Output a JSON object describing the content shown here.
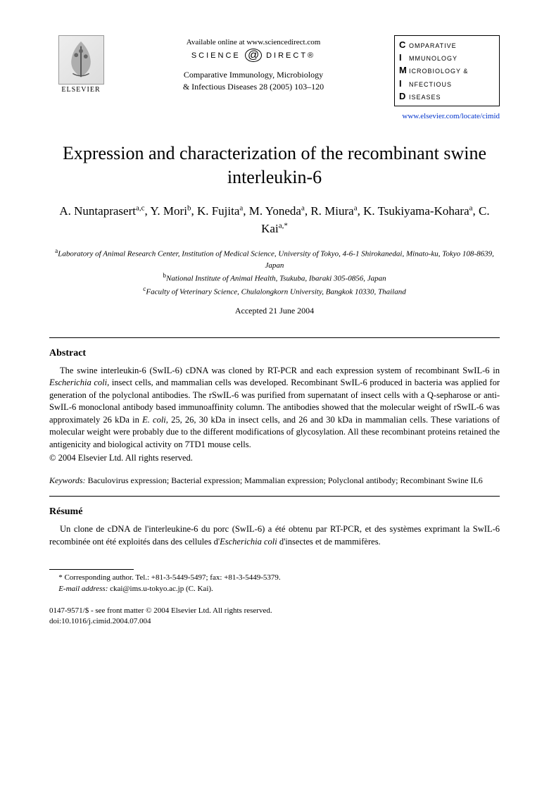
{
  "header": {
    "publisher_name": "ELSEVIER",
    "available_online": "Available online at www.sciencedirect.com",
    "sciencedirect_left": "SCIENCE",
    "sciencedirect_right": "DIRECT®",
    "journal_ref_line1": "Comparative Immunology, Microbiology",
    "journal_ref_line2": "& Infectious Diseases 28 (2005) 103–120",
    "journal_box": {
      "l1_cap": "C",
      "l1_rest": "OMPARATIVE",
      "l2_cap": "I",
      "l2_rest": "MMUNOLOGY",
      "l3_cap": "M",
      "l3_rest": "ICROBIOLOGY &",
      "l4_cap": "I",
      "l4_rest": "NFECTIOUS",
      "l5_cap": "D",
      "l5_rest": "ISEASES"
    },
    "journal_url": "www.elsevier.com/locate/cimid"
  },
  "title": "Expression and characterization of the recombinant swine interleukin-6",
  "authors_html": "A. Nuntaprasert<sup>a,c</sup>, Y. Mori<sup>b</sup>, K. Fujita<sup>a</sup>, M. Yoneda<sup>a</sup>, R. Miura<sup>a</sup>, K. Tsukiyama-Kohara<sup>a</sup>, C. Kai<sup>a,*</sup>",
  "affiliations": {
    "a": "Laboratory of Animal Research Center, Institution of Medical Science, University of Tokyo, 4-6-1 Shirokanedai, Minato-ku, Tokyo 108-8639, Japan",
    "b": "National Institute of Animal Health, Tsukuba, Ibaraki 305-0856, Japan",
    "c": "Faculty of Veterinary Science, Chulalongkorn University, Bangkok 10330, Thailand"
  },
  "accepted": "Accepted 21 June 2004",
  "abstract": {
    "heading": "Abstract",
    "body": "The swine interleukin-6 (SwIL-6) cDNA was cloned by RT-PCR and each expression system of recombinant SwIL-6 in <em>Escherichia coli</em>, insect cells, and mammalian cells was developed. Recombinant SwIL-6 produced in bacteria was applied for generation of the polyclonal antibodies. The rSwIL-6 was purified from supernatant of insect cells with a Q-sepharose or anti-SwIL-6 monoclonal antibody based immunoaffinity column. The antibodies showed that the molecular weight of rSwIL-6 was approximately 26 kDa in <em>E. coli</em>, 25, 26, 30 kDa in insect cells, and 26 and 30 kDa in mammalian cells. These variations of molecular weight were probably due to the different modifications of glycosylation. All these recombinant proteins retained the antigenicity and biological activity on 7TD1 mouse cells.",
    "copyright": "© 2004 Elsevier Ltd. All rights reserved."
  },
  "keywords": {
    "label": "Keywords:",
    "text": " Baculovirus expression; Bacterial expression; Mammalian expression; Polyclonal antibody; Recombinant Swine IL6"
  },
  "resume": {
    "heading": "Résumé",
    "body": "Un clone de cDNA de l'interleukine-6 du porc (SwIL-6) a été obtenu par RT-PCR, et des systèmes exprimant la SwIL-6 recombinée ont été exploités dans des cellules d'<em>Escherichia coli</em> d'insectes et de mammifères."
  },
  "footnote": {
    "corresponding": "* Corresponding author. Tel.: +81-3-5449-5497; fax: +81-3-5449-5379.",
    "email_label": "E-mail address:",
    "email": " ckai@ims.u-tokyo.ac.jp (C. Kai)."
  },
  "bottom": {
    "line1": "0147-9571/$ - see front matter © 2004 Elsevier Ltd. All rights reserved.",
    "line2": "doi:10.1016/j.cimid.2004.07.004"
  }
}
